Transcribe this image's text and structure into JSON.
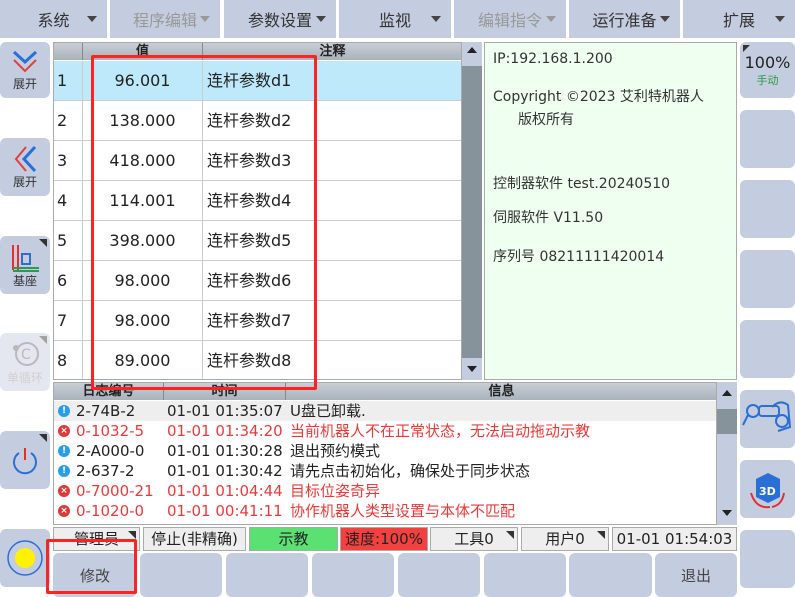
{
  "menu": [
    {
      "label": "系统",
      "enabled": true
    },
    {
      "label": "程序编辑",
      "enabled": false
    },
    {
      "label": "参数设置",
      "enabled": true
    },
    {
      "label": "监视",
      "enabled": true
    },
    {
      "label": "编辑指令",
      "enabled": false
    },
    {
      "label": "运行准备",
      "enabled": true
    },
    {
      "label": "扩展",
      "enabled": true
    }
  ],
  "left_sidebar": [
    {
      "label": "展开",
      "icon": "chevron-double-down-icon"
    },
    {
      "label": "展开",
      "icon": "chevron-double-left-icon"
    },
    {
      "label": "基座",
      "icon": "coordinate-axes-icon"
    },
    {
      "label": "单循环",
      "icon": "single-cycle-icon",
      "enabled": false
    },
    {
      "label": "",
      "icon": "power-icon"
    },
    {
      "label": "",
      "icon": "yellow-indicator-icon"
    }
  ],
  "table": {
    "headers": [
      "",
      "值",
      "注释"
    ],
    "rows": [
      {
        "index": "1",
        "value": "96.001",
        "comment": "连杆参数d1",
        "selected": true
      },
      {
        "index": "2",
        "value": "138.000",
        "comment": "连杆参数d2"
      },
      {
        "index": "3",
        "value": "418.000",
        "comment": "连杆参数d3"
      },
      {
        "index": "4",
        "value": "114.001",
        "comment": "连杆参数d4"
      },
      {
        "index": "5",
        "value": "398.000",
        "comment": "连杆参数d5"
      },
      {
        "index": "6",
        "value": "98.000",
        "comment": "连杆参数d6"
      },
      {
        "index": "7",
        "value": "98.000",
        "comment": "连杆参数d7"
      },
      {
        "index": "8",
        "value": "89.000",
        "comment": "连杆参数d8"
      }
    ]
  },
  "info": {
    "ip": "IP:192.168.1.200",
    "copyright": "Copyright ©2023 艾利特机器人",
    "rights": "版权所有",
    "controller": "控制器软件 test.20240510",
    "servo": "伺服软件 V11.50",
    "serial": "序列号 08211111420014"
  },
  "right_sidebar": {
    "speed": "100%",
    "mode": "手动",
    "icons": [
      "robot-hand-guide-icon",
      "3d-view-icon"
    ]
  },
  "log": {
    "headers": [
      "日志编号",
      "时间",
      "信息"
    ],
    "rows": [
      {
        "type": "info",
        "code": "2-74B-2",
        "time": "01-01 01:35:07",
        "message": "U盘已卸载."
      },
      {
        "type": "error",
        "code": "0-1032-5",
        "time": "01-01 01:34:20",
        "message": "当前机器人不在正常状态，无法启动拖动示教"
      },
      {
        "type": "info",
        "code": "2-A000-0",
        "time": "01-01 01:30:28",
        "message": "退出预约模式"
      },
      {
        "type": "info",
        "code": "2-637-2",
        "time": "01-01 01:30:42",
        "message": "请先点击初始化，确保处于同步状态"
      },
      {
        "type": "error",
        "code": "0-7000-21",
        "time": "01-01 01:04:44",
        "message": "目标位姿奇异"
      },
      {
        "type": "error",
        "code": "0-1020-0",
        "time": "01-01 00:41:11",
        "message": "协作机器人类型设置与本体不匹配"
      }
    ]
  },
  "status": {
    "user": "管理员",
    "state": "停止(非精确)",
    "mode": "示教",
    "speed": "速度:100%",
    "tool": "工具0",
    "user_frame": "用户0",
    "time": "01-01 01:54:03"
  },
  "bottom": {
    "modify": "修改",
    "exit": "退出"
  },
  "colors": {
    "button": "#c4cce0",
    "selected_row": "#bde9fb",
    "info_bg": "#effff0",
    "error": "#e83a3a",
    "teach": "#5be072",
    "speed": "#f54040"
  }
}
